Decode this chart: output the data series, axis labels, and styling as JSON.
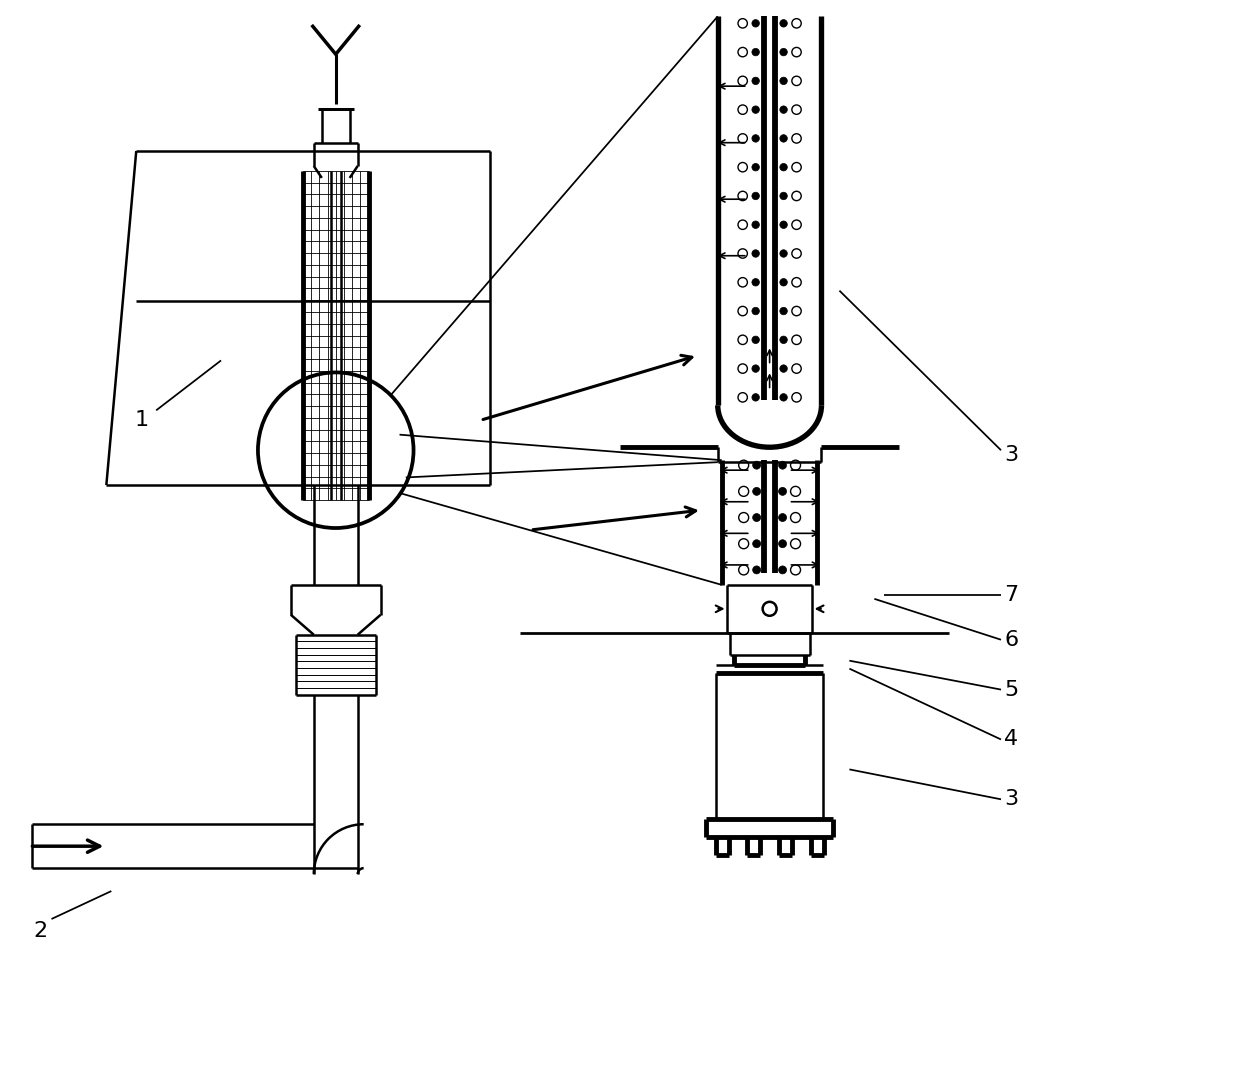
{
  "bg_color": "#ffffff",
  "line_color": "#000000",
  "lw": 1.8,
  "blw": 3.5,
  "fs": 16
}
